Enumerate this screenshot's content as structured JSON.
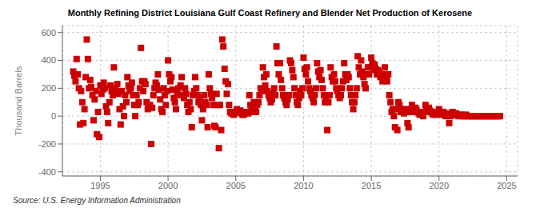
{
  "chart_data": {
    "type": "scatter",
    "title": "Monthly Refining District Louisiana Gulf Coast Refinery and Blender Net Production of Kerosene",
    "y_label": "Thousand Barrels",
    "annotation": "Source: U.S. Energy Information Administration",
    "color": "#cc0000",
    "marker": "square",
    "grid": true,
    "xlim": [
      1992.2,
      2025.8
    ],
    "xticks": [
      1995,
      2000,
      2005,
      2010,
      2015,
      2020,
      2025
    ],
    "ylim": [
      -430,
      650
    ],
    "yticks": [
      -400,
      -200,
      0,
      200,
      400,
      600
    ],
    "x": [
      1993.0,
      1993.08,
      1993.17,
      1993.25,
      1993.33,
      1993.42,
      1993.5,
      1993.58,
      1993.67,
      1993.75,
      1993.83,
      1993.92,
      1994.0,
      1994.08,
      1994.17,
      1994.25,
      1994.33,
      1994.42,
      1994.5,
      1994.58,
      1994.67,
      1994.75,
      1994.83,
      1994.92,
      1995.0,
      1995.08,
      1995.17,
      1995.25,
      1995.33,
      1995.42,
      1995.5,
      1995.58,
      1995.67,
      1995.75,
      1995.83,
      1995.92,
      1996.0,
      1996.08,
      1996.17,
      1996.25,
      1996.33,
      1996.42,
      1996.5,
      1996.58,
      1996.67,
      1996.75,
      1996.83,
      1996.92,
      1997.0,
      1997.08,
      1997.17,
      1997.25,
      1997.33,
      1997.42,
      1997.5,
      1997.58,
      1997.67,
      1997.75,
      1997.83,
      1997.92,
      1998.0,
      1998.08,
      1998.17,
      1998.25,
      1998.33,
      1998.42,
      1998.5,
      1998.58,
      1998.67,
      1998.75,
      1998.83,
      1998.92,
      1999.0,
      1999.08,
      1999.17,
      1999.25,
      1999.33,
      1999.42,
      1999.5,
      1999.58,
      1999.67,
      1999.75,
      1999.83,
      1999.92,
      2000.0,
      2000.08,
      2000.17,
      2000.25,
      2000.33,
      2000.42,
      2000.5,
      2000.58,
      2000.67,
      2000.75,
      2000.83,
      2000.92,
      2001.0,
      2001.08,
      2001.17,
      2001.25,
      2001.33,
      2001.42,
      2001.5,
      2001.58,
      2001.67,
      2001.75,
      2001.83,
      2001.92,
      2002.0,
      2002.08,
      2002.17,
      2002.25,
      2002.33,
      2002.42,
      2002.5,
      2002.58,
      2002.67,
      2002.75,
      2002.83,
      2002.92,
      2003.0,
      2003.08,
      2003.17,
      2003.25,
      2003.33,
      2003.42,
      2003.5,
      2003.58,
      2003.67,
      2003.75,
      2003.83,
      2003.92,
      2004.0,
      2004.08,
      2004.17,
      2004.25,
      2004.33,
      2004.42,
      2004.5,
      2004.58,
      2004.67,
      2004.75,
      2004.83,
      2004.92,
      2005.0,
      2005.08,
      2005.17,
      2005.25,
      2005.33,
      2005.42,
      2005.5,
      2005.58,
      2005.67,
      2005.75,
      2005.83,
      2005.92,
      2006.0,
      2006.08,
      2006.17,
      2006.25,
      2006.33,
      2006.42,
      2006.5,
      2006.58,
      2006.67,
      2006.75,
      2006.83,
      2006.92,
      2007.0,
      2007.08,
      2007.17,
      2007.25,
      2007.33,
      2007.42,
      2007.5,
      2007.58,
      2007.67,
      2007.75,
      2007.83,
      2007.92,
      2008.0,
      2008.08,
      2008.17,
      2008.25,
      2008.33,
      2008.42,
      2008.5,
      2008.58,
      2008.67,
      2008.75,
      2008.83,
      2008.92,
      2009.0,
      2009.08,
      2009.17,
      2009.25,
      2009.33,
      2009.42,
      2009.5,
      2009.58,
      2009.67,
      2009.75,
      2009.83,
      2009.92,
      2010.0,
      2010.08,
      2010.17,
      2010.25,
      2010.33,
      2010.42,
      2010.5,
      2010.58,
      2010.67,
      2010.75,
      2010.83,
      2010.92,
      2011.0,
      2011.08,
      2011.17,
      2011.25,
      2011.33,
      2011.42,
      2011.5,
      2011.58,
      2011.67,
      2011.75,
      2011.83,
      2011.92,
      2012.0,
      2012.08,
      2012.17,
      2012.25,
      2012.33,
      2012.42,
      2012.5,
      2012.58,
      2012.67,
      2012.75,
      2012.83,
      2012.92,
      2013.0,
      2013.08,
      2013.17,
      2013.25,
      2013.33,
      2013.42,
      2013.5,
      2013.58,
      2013.67,
      2013.75,
      2013.83,
      2013.92,
      2014.0,
      2014.08,
      2014.17,
      2014.25,
      2014.33,
      2014.42,
      2014.5,
      2014.58,
      2014.67,
      2014.75,
      2014.83,
      2014.92,
      2015.0,
      2015.08,
      2015.17,
      2015.25,
      2015.33,
      2015.42,
      2015.5,
      2015.58,
      2015.67,
      2015.75,
      2015.83,
      2015.92,
      2016.0,
      2016.08,
      2016.17,
      2016.25,
      2016.33,
      2016.42,
      2016.5,
      2016.58,
      2016.67,
      2016.75,
      2016.83,
      2016.92,
      2017.0,
      2017.08,
      2017.17,
      2017.25,
      2017.33,
      2017.42,
      2017.5,
      2017.58,
      2017.67,
      2017.75,
      2017.83,
      2017.92,
      2018.0,
      2018.08,
      2018.17,
      2018.25,
      2018.33,
      2018.42,
      2018.5,
      2018.58,
      2018.67,
      2018.75,
      2018.83,
      2018.92,
      2019.0,
      2019.08,
      2019.17,
      2019.25,
      2019.33,
      2019.42,
      2019.5,
      2019.58,
      2019.67,
      2019.75,
      2019.83,
      2019.92,
      2020.0,
      2020.08,
      2020.17,
      2020.25,
      2020.33,
      2020.42,
      2020.5,
      2020.58,
      2020.67,
      2020.75,
      2020.83,
      2020.92,
      2021.0,
      2021.08,
      2021.17,
      2021.25,
      2021.33,
      2021.42,
      2021.5,
      2021.58,
      2021.67,
      2021.75,
      2021.83,
      2021.92,
      2022.0,
      2022.08,
      2022.17,
      2022.25,
      2022.33,
      2022.42,
      2022.5,
      2022.58,
      2022.67,
      2022.75,
      2022.83,
      2022.92,
      2023.0,
      2023.08,
      2023.17,
      2023.25,
      2023.33,
      2023.42,
      2023.5,
      2023.58,
      2023.67,
      2023.75,
      2023.83,
      2023.92,
      2024.0,
      2024.08,
      2024.17,
      2024.25,
      2024.33,
      2024.42,
      2024.5
    ],
    "values": [
      320,
      290,
      250,
      410,
      300,
      200,
      -60,
      180,
      100,
      -50,
      50,
      280,
      550,
      410,
      200,
      260,
      210,
      150,
      -30,
      120,
      180,
      -130,
      30,
      -150,
      220,
      160,
      190,
      240,
      200,
      70,
      30,
      -50,
      100,
      220,
      180,
      150,
      350,
      200,
      180,
      230,
      160,
      50,
      -60,
      180,
      70,
      0,
      150,
      100,
      280,
      220,
      180,
      200,
      240,
      150,
      80,
      0,
      150,
      80,
      100,
      200,
      490,
      250,
      180,
      250,
      230,
      100,
      50,
      70,
      80,
      -200,
      60,
      150,
      200,
      240,
      220,
      300,
      190,
      120,
      50,
      30,
      200,
      150,
      80,
      180,
      400,
      300,
      250,
      280,
      190,
      130,
      100,
      50,
      160,
      200,
      150,
      220,
      280,
      150,
      130,
      200,
      160,
      80,
      30,
      100,
      50,
      -80,
      150,
      180,
      280,
      200,
      150,
      100,
      130,
      80,
      -30,
      50,
      150,
      100,
      80,
      -80,
      300,
      200,
      160,
      130,
      80,
      -70,
      -80,
      160,
      80,
      -230,
      80,
      -100,
      550,
      500,
      340,
      250,
      160,
      230,
      80,
      30,
      20,
      30,
      10,
      20,
      30,
      50,
      30,
      30,
      40,
      20,
      10,
      10,
      20,
      30,
      30,
      20,
      150,
      80,
      60,
      30,
      100,
      50,
      30,
      80,
      100,
      150,
      200,
      180,
      350,
      280,
      220,
      300,
      180,
      150,
      130,
      100,
      120,
      160,
      200,
      150,
      500,
      380,
      300,
      380,
      260,
      200,
      150,
      130,
      100,
      80,
      120,
      150,
      400,
      380,
      330,
      280,
      200,
      150,
      100,
      80,
      130,
      180,
      150,
      200,
      420,
      340,
      300,
      350,
      250,
      200,
      180,
      150,
      130,
      100,
      150,
      200,
      380,
      320,
      280,
      330,
      260,
      200,
      150,
      100,
      130,
      -100,
      100,
      150,
      350,
      280,
      250,
      300,
      250,
      200,
      180,
      150,
      130,
      150,
      200,
      250,
      380,
      300,
      260,
      300,
      280,
      200,
      150,
      100,
      50,
      100,
      150,
      200,
      430,
      350,
      300,
      400,
      320,
      280,
      230,
      200,
      300,
      350,
      300,
      350,
      420,
      380,
      330,
      370,
      340,
      300,
      330,
      310,
      280,
      300,
      250,
      300,
      350,
      280,
      250,
      300,
      150,
      100,
      30,
      50,
      0,
      -80,
      50,
      -100,
      100,
      80,
      30,
      50,
      30,
      20,
      50,
      30,
      -50,
      -80,
      30,
      50,
      80,
      50,
      30,
      60,
      50,
      30,
      20,
      10,
      30,
      20,
      0,
      30,
      80,
      50,
      30,
      60,
      40,
      30,
      20,
      10,
      30,
      20,
      10,
      30,
      50,
      30,
      20,
      10,
      30,
      10,
      0,
      10,
      20,
      -50,
      0,
      10,
      30,
      20,
      10,
      20,
      10,
      0,
      10,
      0,
      10,
      0,
      0,
      0,
      10,
      0,
      0,
      0,
      0,
      0,
      0,
      0,
      0,
      0,
      0,
      0,
      0,
      0,
      0,
      0,
      0,
      0,
      0,
      0,
      0,
      0,
      0,
      0,
      0,
      0,
      0,
      0,
      0,
      0,
      0
    ]
  }
}
